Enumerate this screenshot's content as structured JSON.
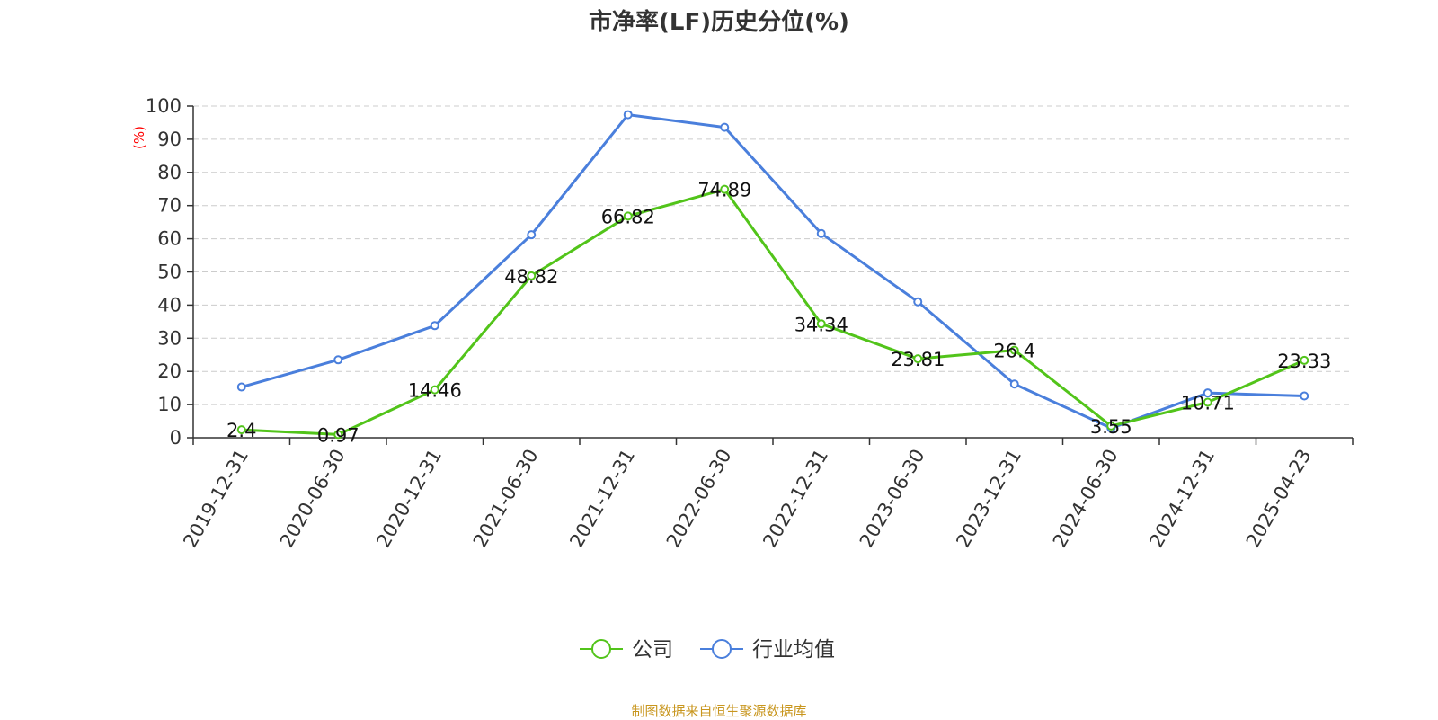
{
  "chart_data": {
    "type": "line",
    "title": "市净率(LF)历史分位(%)",
    "ylabel": "(%)",
    "ylabel_color": "#ff0000",
    "ylim": [
      0,
      100
    ],
    "yticks": [
      0,
      10,
      20,
      30,
      40,
      50,
      60,
      70,
      80,
      90,
      100
    ],
    "grid": "horizontal-dashed",
    "legend_position": "bottom-center",
    "categories": [
      "2019-12-31",
      "2020-06-30",
      "2020-12-31",
      "2021-06-30",
      "2021-12-31",
      "2022-06-30",
      "2022-12-31",
      "2023-06-30",
      "2023-12-31",
      "2024-06-30",
      "2024-12-31",
      "2025-04-23"
    ],
    "series": [
      {
        "name": "公司",
        "color": "#52c41a",
        "show_labels": true,
        "values": [
          2.4,
          0.97,
          14.46,
          48.82,
          66.82,
          74.89,
          34.34,
          23.81,
          26.4,
          3.55,
          10.71,
          23.33
        ]
      },
      {
        "name": "行业均值",
        "color": "#4a7fdc",
        "show_labels": false,
        "values": [
          15.3,
          23.5,
          33.8,
          61.2,
          97.4,
          93.6,
          61.6,
          41.0,
          16.2,
          2.9,
          13.5,
          12.6
        ]
      }
    ]
  },
  "footer": "制图数据来自恒生聚源数据库"
}
